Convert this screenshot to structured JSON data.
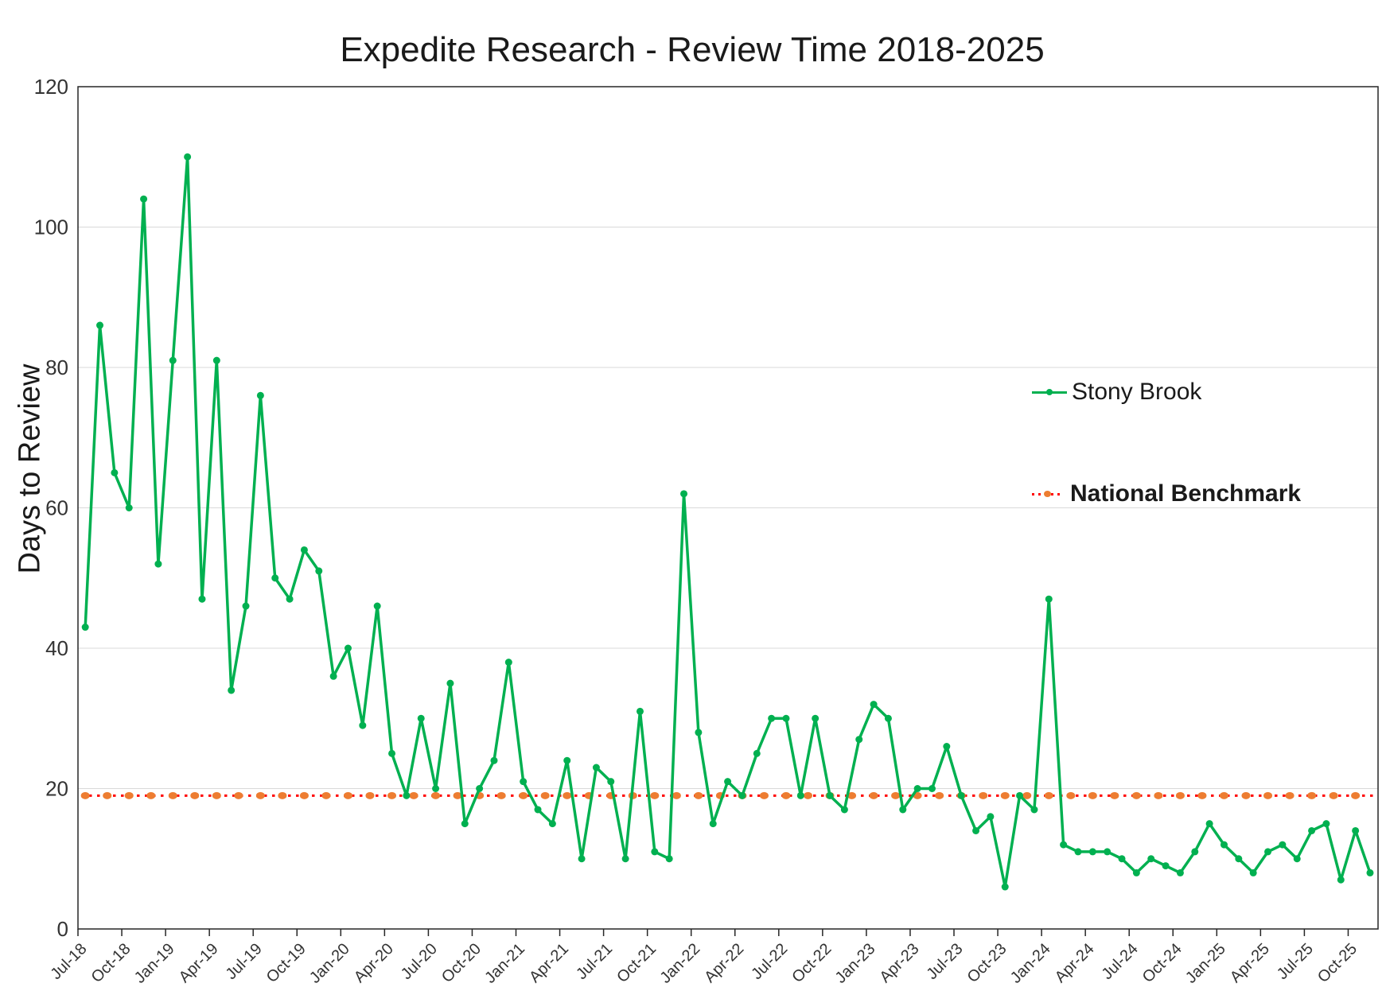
{
  "chart_data": {
    "type": "line",
    "title": "Expedite Research - Review Time 2018-2025",
    "ylabel": "Days to Review",
    "xlabel": "",
    "ylim": [
      0,
      120
    ],
    "y_ticks": [
      0,
      20,
      40,
      60,
      80,
      100,
      120
    ],
    "grid": "horizontal",
    "legend_position": "right-floating",
    "categories": [
      "Jul-18",
      "Aug-18",
      "Sep-18",
      "Oct-18",
      "Nov-18",
      "Dec-18",
      "Jan-19",
      "Feb-19",
      "Mar-19",
      "Apr-19",
      "May-19",
      "Jun-19",
      "Jul-19",
      "Aug-19",
      "Sep-19",
      "Oct-19",
      "Nov-19",
      "Dec-19",
      "Jan-20",
      "Feb-20",
      "Mar-20",
      "Apr-20",
      "May-20",
      "Jun-20",
      "Jul-20",
      "Aug-20",
      "Sep-20",
      "Oct-20",
      "Nov-20",
      "Dec-20",
      "Jan-21",
      "Feb-21",
      "Mar-21",
      "Apr-21",
      "May-21",
      "Jun-21",
      "Jul-21",
      "Aug-21",
      "Sep-21",
      "Oct-21",
      "Nov-21",
      "Dec-21",
      "Jan-22",
      "Feb-22",
      "Mar-22",
      "Apr-22",
      "May-22",
      "Jun-22",
      "Jul-22",
      "Aug-22",
      "Sep-22",
      "Oct-22",
      "Nov-22",
      "Dec-22",
      "Jan-23",
      "Feb-23",
      "Mar-23",
      "Apr-23",
      "May-23",
      "Jun-23",
      "Jul-23",
      "Aug-23",
      "Sep-23",
      "Oct-23",
      "Nov-23",
      "Dec-23",
      "Jan-24",
      "Feb-24",
      "Mar-24",
      "Apr-24",
      "May-24",
      "Jun-24",
      "Jul-24",
      "Aug-24",
      "Sep-24",
      "Oct-24",
      "Nov-24",
      "Dec-24",
      "Jan-25",
      "Feb-25",
      "Mar-25",
      "Apr-25",
      "May-25",
      "Jun-25",
      "Jul-25",
      "Aug-25",
      "Sep-25",
      "Oct-25",
      "Nov-25"
    ],
    "x_tick_labels": [
      "Jul-18",
      "Oct-18",
      "Jan-19",
      "Apr-19",
      "Jul-19",
      "Oct-19",
      "Jan-20",
      "Apr-20",
      "Jul-20",
      "Oct-20",
      "Jan-21",
      "Apr-21",
      "Jul-21",
      "Oct-21",
      "Jan-22",
      "Apr-22",
      "Jul-22",
      "Oct-22",
      "Jan-23",
      "Apr-23",
      "Jul-23",
      "Oct-23",
      "Jan-24",
      "Apr-24",
      "Jul-24",
      "Oct-24",
      "Jan-25",
      "Apr-25",
      "Jul-25",
      "Oct-25"
    ],
    "series": [
      {
        "name": "Stony Brook",
        "type": "line-markers",
        "color": "#00B050",
        "values": [
          43,
          86,
          65,
          60,
          104,
          52,
          81,
          110,
          47,
          81,
          34,
          46,
          76,
          50,
          47,
          54,
          51,
          36,
          40,
          29,
          46,
          25,
          19,
          30,
          20,
          35,
          15,
          20,
          24,
          38,
          21,
          17,
          15,
          24,
          10,
          23,
          21,
          10,
          31,
          11,
          10,
          62,
          28,
          15,
          21,
          19,
          25,
          30,
          30,
          19,
          30,
          19,
          17,
          27,
          32,
          30,
          17,
          20,
          20,
          26,
          19,
          14,
          16,
          6,
          19,
          17,
          47,
          12,
          11,
          11,
          11,
          10,
          8,
          10,
          9,
          8,
          11,
          15,
          12,
          10,
          8,
          11,
          12,
          10,
          14,
          15,
          7,
          14,
          8
        ]
      },
      {
        "name": "National Benchmark",
        "type": "dotted-constant-line",
        "dot_color": "#ED7D31",
        "line_color": "#FF0000",
        "value": 19
      }
    ],
    "colors": {
      "gridline": "#D9D9D9",
      "axis": "#262626",
      "tick_text": "#333333"
    },
    "legend": {
      "stony_brook_label": "Stony Brook",
      "national_benchmark_label": "National Benchmark"
    }
  }
}
